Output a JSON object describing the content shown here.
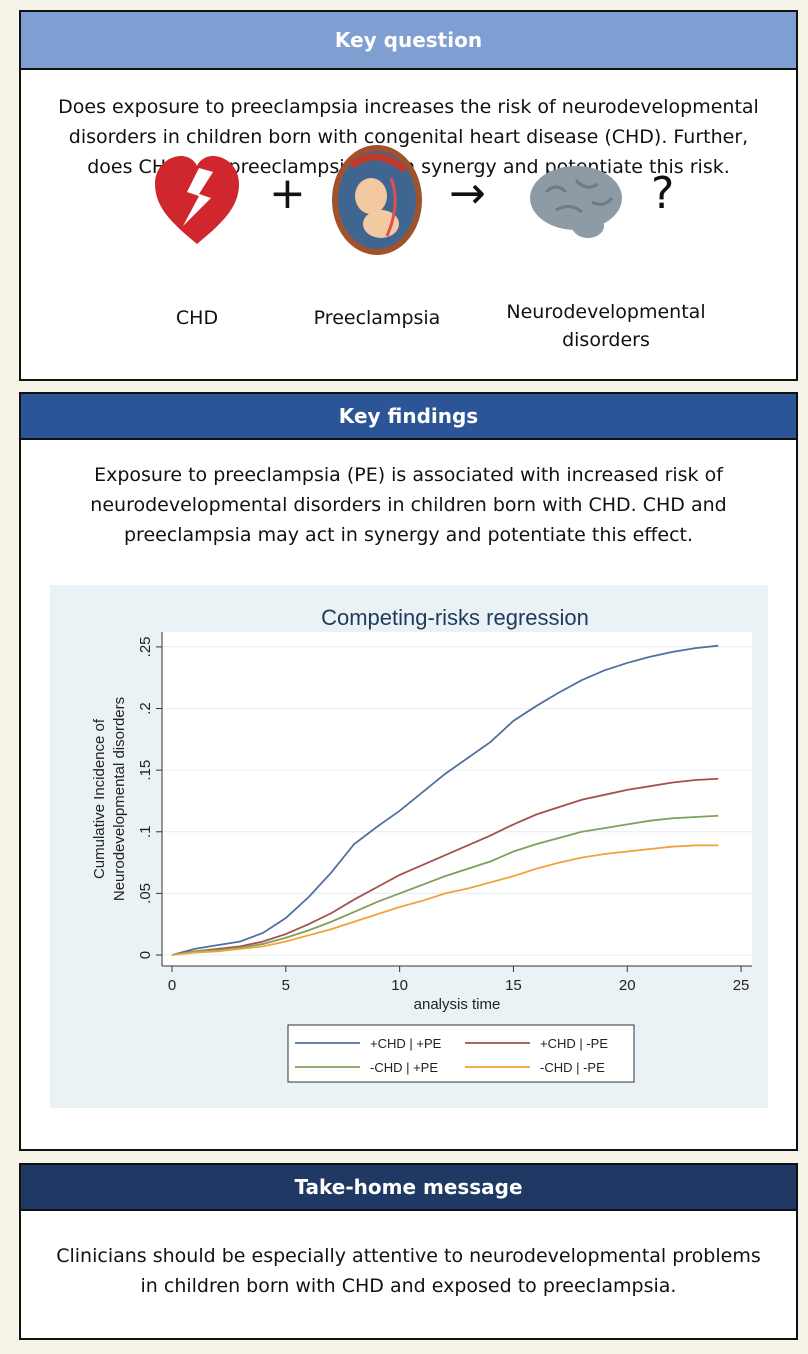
{
  "key_question": {
    "title": "Key question",
    "text": "Does exposure to preeclampsia increases the risk of neurodevelopmental disorders in children born with congenital heart disease (CHD). Further, does CHD and preeclampsia act in synergy and potentiate this risk.",
    "icons": [
      {
        "label": "CHD"
      },
      {
        "label": "Preeclampsia"
      },
      {
        "label": "Neurodevelopmental disorders"
      }
    ],
    "plus": "+",
    "arrow": "→",
    "question_mark": "?"
  },
  "key_findings": {
    "title": "Key findings",
    "text": "Exposure to preeclampsia (PE) is associated with increased risk of neurodevelopmental disorders in children born with CHD. CHD and preeclampsia may act in synergy and potentiate this effect."
  },
  "take_home": {
    "title": "Take-home message",
    "text": "Clinicians should be especially attentive to neurodevelopmental problems in children born with CHD and exposed to preeclampsia."
  },
  "chart_data": {
    "type": "line",
    "title": "Competing-risks regression",
    "x_label": "analysis time",
    "y_label": [
      "Cumulative Incidence of",
      "Neurodevelopmental disorders"
    ],
    "x": [
      0,
      1,
      2,
      3,
      4,
      5,
      6,
      7,
      8,
      9,
      10,
      11,
      12,
      13,
      14,
      15,
      16,
      17,
      18,
      19,
      20,
      21,
      22,
      23,
      24
    ],
    "series": [
      {
        "name": "+CHD | +PE",
        "color": "#50709f",
        "values": [
          0,
          0.005,
          0.008,
          0.011,
          0.018,
          0.03,
          0.047,
          0.067,
          0.09,
          0.104,
          0.117,
          0.132,
          0.147,
          0.16,
          0.173,
          0.19,
          0.202,
          0.213,
          0.223,
          0.231,
          0.237,
          0.242,
          0.246,
          0.249,
          0.251
        ]
      },
      {
        "name": "+CHD | -PE",
        "color": "#a4504d",
        "values": [
          0,
          0.003,
          0.005,
          0.007,
          0.011,
          0.017,
          0.025,
          0.034,
          0.045,
          0.055,
          0.065,
          0.073,
          0.081,
          0.089,
          0.097,
          0.106,
          0.114,
          0.12,
          0.126,
          0.13,
          0.134,
          0.137,
          0.14,
          0.142,
          0.143
        ]
      },
      {
        "name": "-CHD | +PE",
        "color": "#7ea05a",
        "values": [
          0,
          0.003,
          0.004,
          0.006,
          0.009,
          0.014,
          0.02,
          0.027,
          0.035,
          0.043,
          0.05,
          0.057,
          0.064,
          0.07,
          0.076,
          0.084,
          0.09,
          0.095,
          0.1,
          0.103,
          0.106,
          0.109,
          0.111,
          0.112,
          0.113
        ]
      },
      {
        "name": "-CHD | -PE",
        "color": "#f2a23a",
        "values": [
          0,
          0.002,
          0.003,
          0.005,
          0.007,
          0.011,
          0.016,
          0.021,
          0.027,
          0.033,
          0.039,
          0.044,
          0.05,
          0.054,
          0.059,
          0.064,
          0.07,
          0.075,
          0.079,
          0.082,
          0.084,
          0.086,
          0.088,
          0.089,
          0.089
        ]
      }
    ],
    "xlim": [
      -0.44,
      25.48
    ],
    "ylim": [
      -0.0089,
      0.2621
    ],
    "xticks": [
      0,
      5,
      10,
      15,
      20,
      25
    ],
    "yticks": [
      0,
      {
        "value": 0.05,
        "label": ".05"
      },
      {
        "value": 0.1,
        "label": ".1"
      },
      {
        "value": 0.15,
        "label": ".15"
      },
      {
        "value": 0.2,
        "label": ".2"
      },
      {
        "value": 0.25,
        "label": ".25"
      }
    ],
    "grid": true,
    "legend": "bottom"
  }
}
